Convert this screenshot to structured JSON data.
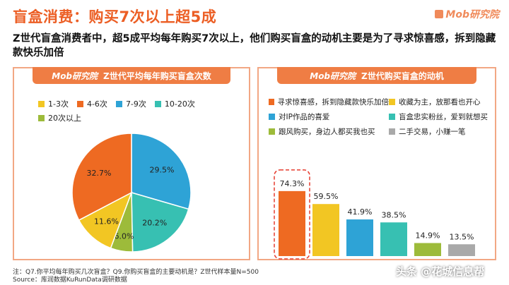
{
  "page": {
    "title": "盲盒消费：购买7次以上超5成",
    "brand": "Mob研究院",
    "subtitle": "Z世代盲盒消费者中，超5成平均每年购买7次以上，他们购买盲盒的动机主要是为了寻求惊喜感，拆到隐藏款快乐加倍",
    "footnote_1": "注：Q7.你平均每年购买几次盲盒？Q9.你购买盲盒的主要动机是？Z世代样本量N=500",
    "footnote_2": "Source：库润数据KuRunData调研数据",
    "watermark": "头条 @花城信息帮"
  },
  "colors": {
    "accent": "#ec5e24",
    "header": "#ef7d44",
    "border": "#f2a784"
  },
  "chart_data": [
    {
      "type": "pie",
      "title": "Z世代平均每年购买盲盒次数",
      "header_brand": "Mob研究院",
      "legend_position": "top",
      "slices": [
        {
          "label": "1-3次",
          "value": 11.6,
          "value_label": "11.6%",
          "color": "#f2c623"
        },
        {
          "label": "4-6次",
          "value": 32.7,
          "value_label": "32.7%",
          "color": "#ee6a22"
        },
        {
          "label": "7-9次",
          "value": 29.5,
          "value_label": "29.5%",
          "color": "#2ea3d6"
        },
        {
          "label": "10-20次",
          "value": 20.2,
          "value_label": "20.2%",
          "color": "#37c0b2"
        },
        {
          "label": "20次以上",
          "value": 6.0,
          "value_label": "6.0%",
          "color": "#9dbb3a"
        }
      ]
    },
    {
      "type": "bar",
      "title": "Z世代购买盲盒的动机",
      "header_brand": "Mob研究院",
      "legend_position": "top",
      "ylim": [
        0,
        100
      ],
      "categories": [
        "寻求惊喜感，拆到隐藏款快乐加倍",
        "收藏为主，放那看也开心",
        "对IP作品的喜爱",
        "盲盒忠实粉丝，爱到就想买",
        "跟风购买，身边人都买我也买",
        "二手交易，小赚一笔"
      ],
      "values": [
        74.3,
        59.5,
        41.9,
        38.5,
        14.9,
        13.5
      ],
      "value_labels": [
        "74.3%",
        "59.5%",
        "41.9%",
        "38.5%",
        "14.9%",
        "13.5%"
      ],
      "colors": [
        "#ee6a22",
        "#f2c623",
        "#2ea3d6",
        "#37c0b2",
        "#9dbb3a",
        "#a9a9a9"
      ],
      "highlight_index": 0
    }
  ]
}
